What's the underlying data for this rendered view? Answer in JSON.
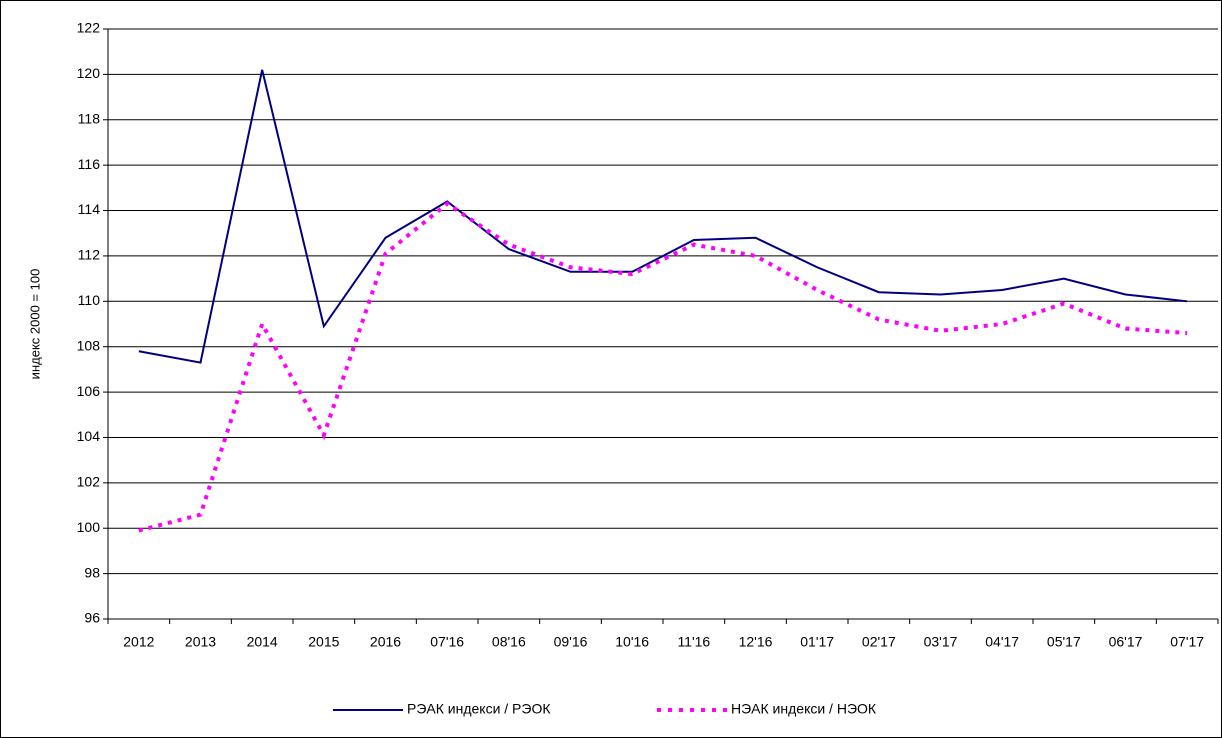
{
  "chart_data": {
    "type": "line",
    "ylabel": "индекс 2000 = 100",
    "categories": [
      "2012",
      "2013",
      "2014",
      "2015",
      "2016",
      "07'16",
      "08'16",
      "09'16",
      "10'16",
      "11'16",
      "12'16",
      "01'17",
      "02'17",
      "03'17",
      "04'17",
      "05'17",
      "06'17",
      "07'17"
    ],
    "series": [
      {
        "name": "РЭАК индекси / РЭОК",
        "color": "#000080",
        "style": "solid",
        "values": [
          107.8,
          107.3,
          120.2,
          108.9,
          112.8,
          114.4,
          112.3,
          111.3,
          111.3,
          112.7,
          112.8,
          111.5,
          110.4,
          110.3,
          110.5,
          111.0,
          110.3,
          110.0
        ]
      },
      {
        "name": "НЭАК индекси / НЭОК",
        "color": "#ff00ff",
        "style": "dotted",
        "values": [
          99.9,
          100.6,
          109.0,
          104.1,
          112.1,
          114.3,
          112.5,
          111.5,
          111.2,
          112.5,
          112.0,
          110.5,
          109.2,
          108.7,
          109.0,
          109.9,
          108.8,
          108.6
        ]
      }
    ],
    "ylim": [
      96,
      122
    ],
    "yticks": [
      96,
      98,
      100,
      102,
      104,
      106,
      108,
      110,
      112,
      114,
      116,
      118,
      120,
      122
    ],
    "grid": true,
    "legend": "bottom"
  }
}
